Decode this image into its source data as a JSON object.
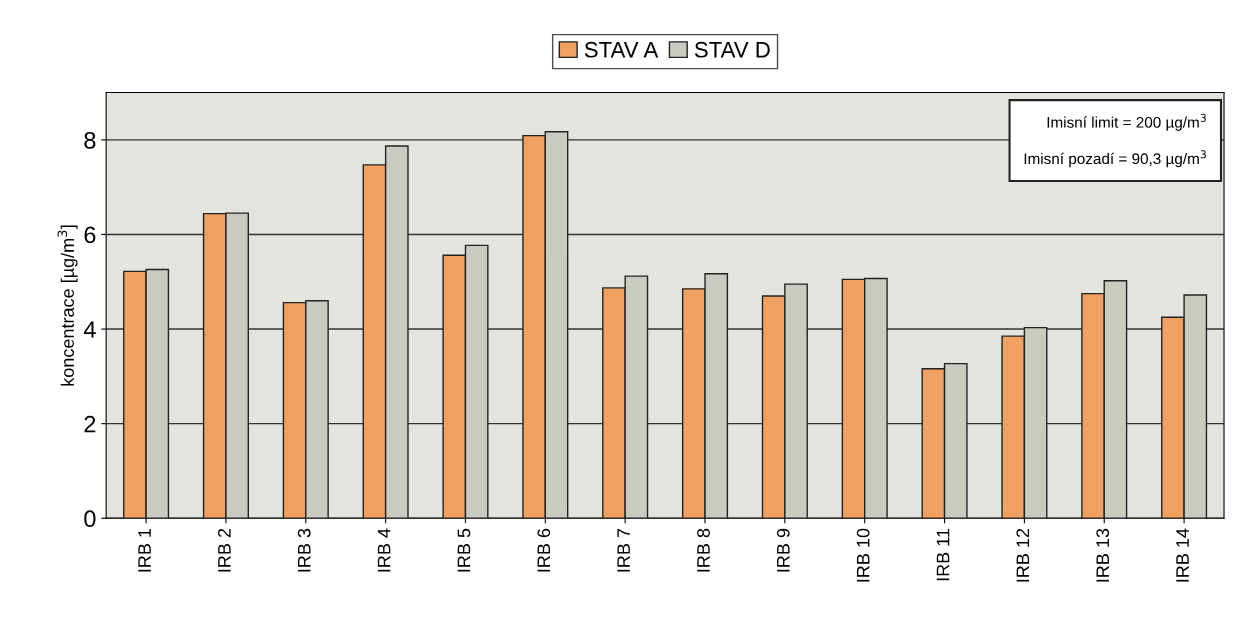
{
  "chart_data": {
    "type": "bar",
    "ylabel": "koncentrace [µg/m$^{3}$]",
    "categories": [
      "IRB 1",
      "IRB 2",
      "IRB 3",
      "IRB 4",
      "IRB 5",
      "IRB 6",
      "IRB 7",
      "IRB 8",
      "IRB 9",
      "IRB 10",
      "IRB 11",
      "IRB 12",
      "IRB 13",
      "IRB 14"
    ],
    "series": [
      {
        "name": "STAV A",
        "color": "#f0a060",
        "values": [
          5.22,
          6.44,
          4.56,
          7.47,
          5.56,
          8.09,
          4.87,
          4.85,
          4.7,
          5.05,
          3.16,
          3.85,
          4.75,
          4.25
        ]
      },
      {
        "name": "STAV D",
        "color": "#c9cbc0",
        "values": [
          5.26,
          6.45,
          4.6,
          7.87,
          5.77,
          8.17,
          5.12,
          5.17,
          4.95,
          5.07,
          3.27,
          4.03,
          5.02,
          4.72
        ]
      }
    ],
    "ylim": [
      0,
      9
    ],
    "yticks": [
      0,
      2,
      4,
      6,
      8
    ],
    "grid": "y",
    "legend": "top",
    "annotations": [
      "Imisní limit = 200 µg/m$^{3}$",
      "Imisní pozadí = 90,3 µg/m$^{3}$"
    ]
  }
}
